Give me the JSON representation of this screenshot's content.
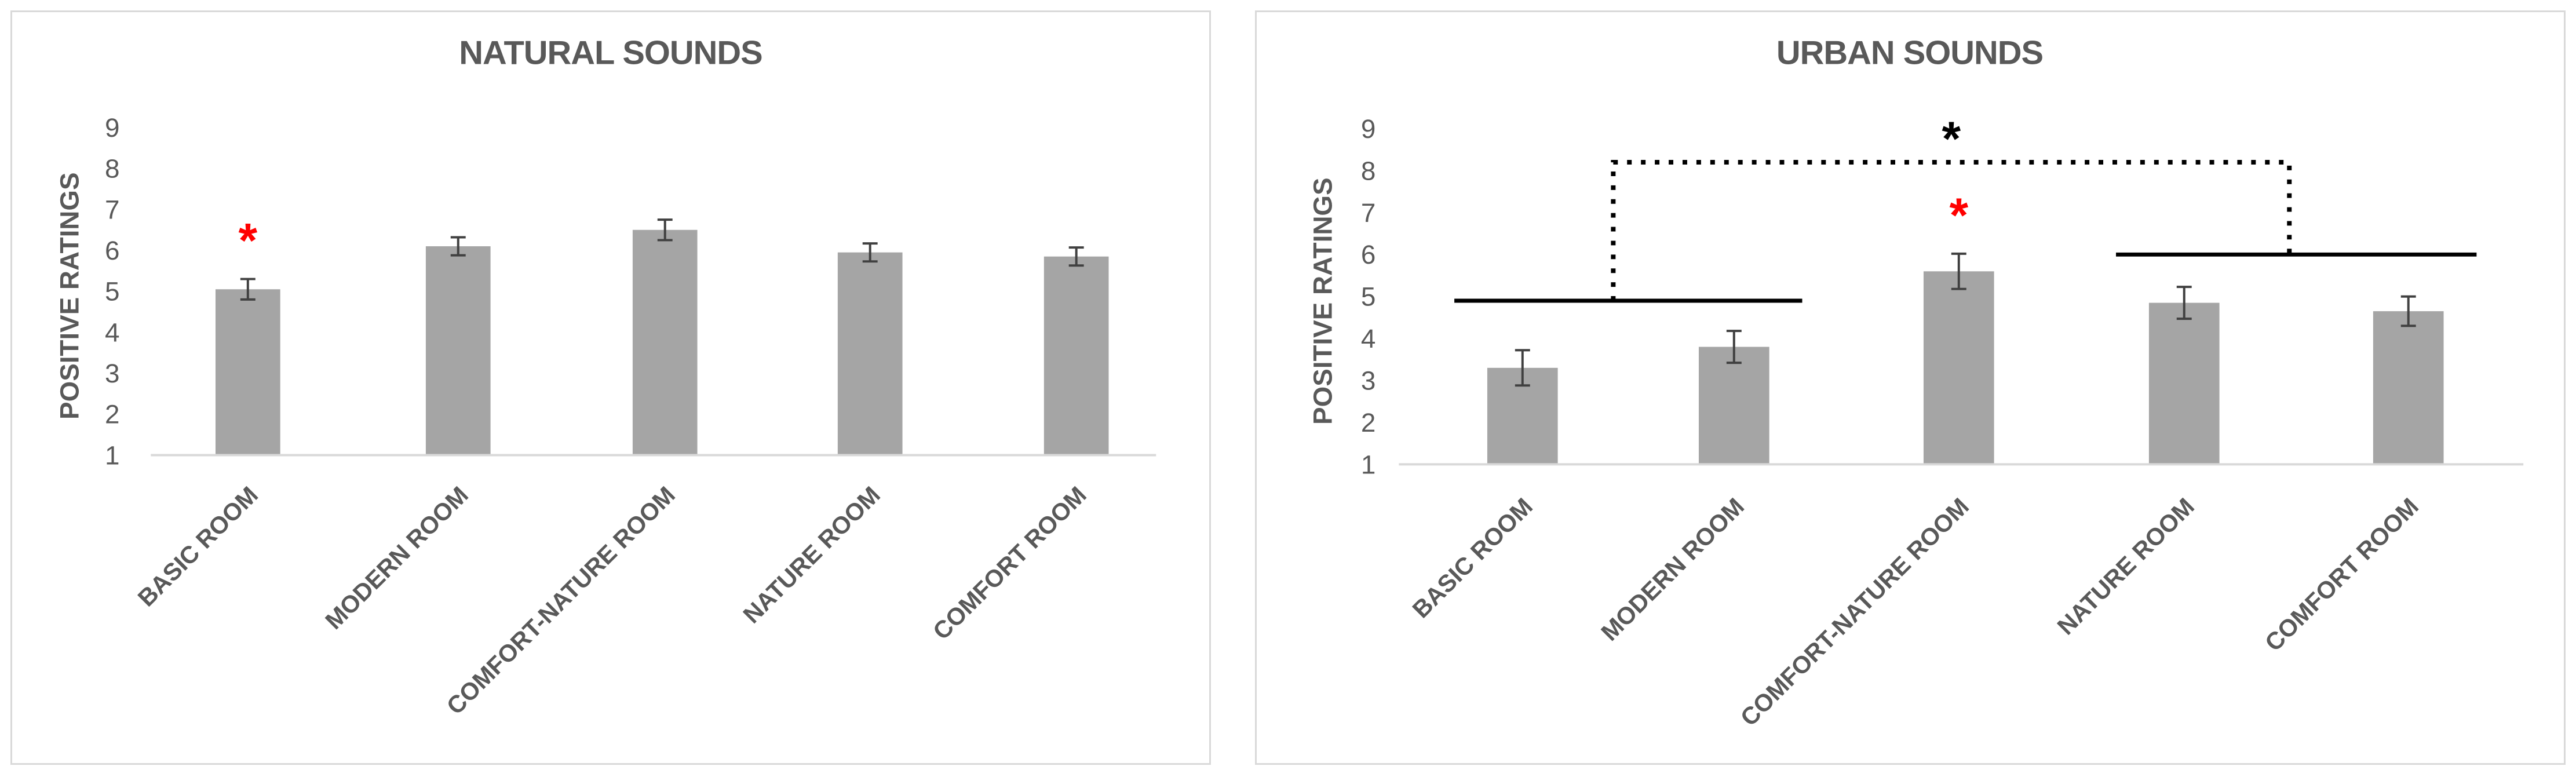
{
  "chart_data": [
    {
      "type": "bar",
      "title": "NATURAL SOUNDS",
      "ylabel": "POSITIVE RATINGS",
      "xlabel": "",
      "ylim": [
        1,
        9
      ],
      "yticks": [
        "1",
        "2",
        "3",
        "4",
        "5",
        "6",
        "7",
        "8",
        "9"
      ],
      "categories": [
        "BASIC ROOM",
        "MODERN ROOM",
        "COMFORT-NATURE ROOM",
        "NATURE ROOM",
        "COMFORT ROOM"
      ],
      "values": [
        5.05,
        6.1,
        6.5,
        5.95,
        5.85
      ],
      "error": [
        0.25,
        0.22,
        0.25,
        0.22,
        0.22
      ],
      "grid": false,
      "colors": {
        "bar": "#a5a5a5",
        "axis": "#d9d9d9",
        "text": "#595959",
        "star": "#ff0000"
      },
      "annotations": [
        {
          "type": "star",
          "label": "*",
          "category": "BASIC ROOM",
          "color": "#ff0000"
        }
      ]
    },
    {
      "type": "bar",
      "title": "URBAN SOUNDS",
      "ylabel": "POSITIVE RATINGS",
      "xlabel": "",
      "ylim": [
        1,
        9
      ],
      "yticks": [
        "1",
        "2",
        "3",
        "4",
        "5",
        "6",
        "7",
        "8",
        "9"
      ],
      "categories": [
        "BASIC ROOM",
        "MODERN ROOM",
        "COMFORT-NATURE ROOM",
        "NATURE ROOM",
        "COMFORT ROOM"
      ],
      "values": [
        3.3,
        3.8,
        5.6,
        4.85,
        4.65
      ],
      "error": [
        0.42,
        0.38,
        0.42,
        0.38,
        0.35
      ],
      "grid": false,
      "colors": {
        "bar": "#a5a5a5",
        "axis": "#d9d9d9",
        "text": "#595959",
        "star": "#ff0000",
        "bracket": "#000000"
      },
      "annotations": [
        {
          "type": "star",
          "label": "*",
          "category": "COMFORT-NATURE ROOM",
          "color": "#ff0000"
        },
        {
          "type": "group-line",
          "from": "BASIC ROOM",
          "to": "MODERN ROOM",
          "y": 4.9
        },
        {
          "type": "group-line",
          "from": "NATURE ROOM",
          "to": "COMFORT ROOM",
          "y": 6.0
        },
        {
          "type": "bracket",
          "label": "*",
          "y": 8.2,
          "style": "dotted",
          "color": "#000000"
        }
      ]
    }
  ]
}
